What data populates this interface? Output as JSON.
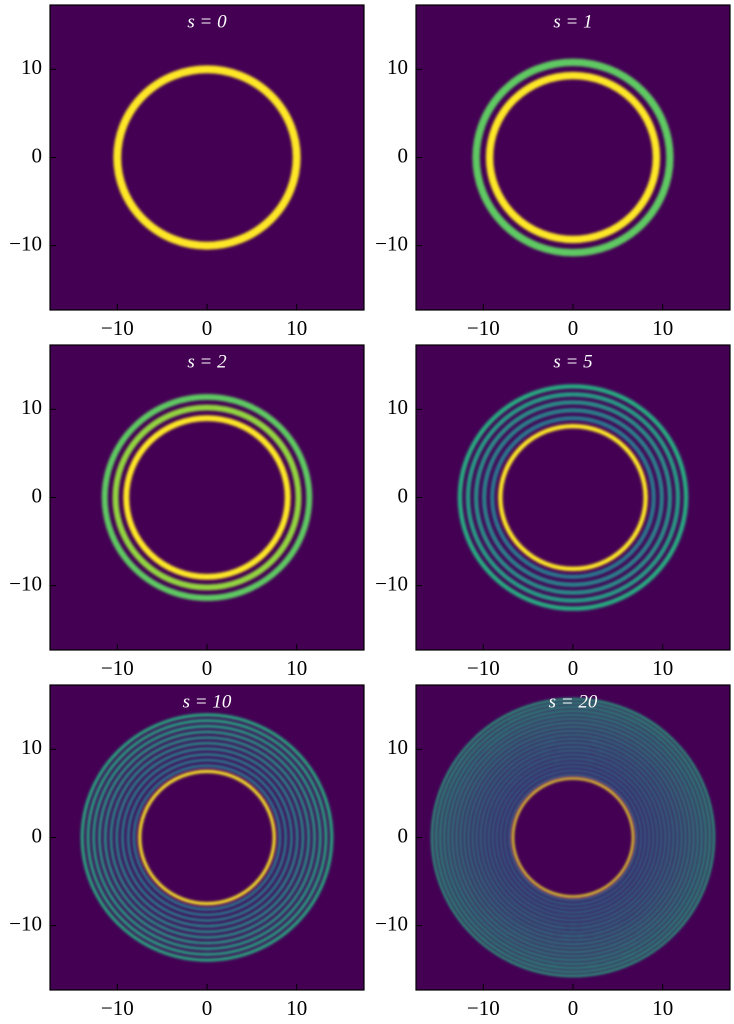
{
  "chart_data": [
    {
      "type": "heatmap",
      "title": "s = 0",
      "background": "#440154",
      "xlim": [
        -17.5,
        17.5
      ],
      "ylim": [
        -17.3,
        17.3
      ],
      "xticks": [
        {
          "value": -10,
          "label": "−10"
        },
        0,
        10
      ],
      "yticks": [
        {
          "value": -10,
          "label": "−10"
        },
        0,
        10
      ],
      "radii": [
        10
      ]
    },
    {
      "type": "heatmap",
      "title": "s = 1",
      "background": "#440154",
      "xlim": [
        -17.5,
        17.5
      ],
      "ylim": [
        -17.3,
        17.3
      ],
      "xticks": [
        {
          "value": -10,
          "label": "−10"
        },
        0,
        10
      ],
      "yticks": [
        {
          "value": -10,
          "label": "−10"
        },
        0,
        10
      ],
      "radii": [
        9.3,
        10.8
      ]
    },
    {
      "type": "heatmap",
      "title": "s = 2",
      "background": "#440154",
      "xlim": [
        -17.5,
        17.5
      ],
      "ylim": [
        -17.3,
        17.3
      ],
      "xticks": [
        {
          "value": -10,
          "label": "−10"
        },
        0,
        10
      ],
      "yticks": [
        {
          "value": -10,
          "label": "−10"
        },
        0,
        10
      ],
      "radii": [
        9.0,
        10.2,
        11.4
      ]
    },
    {
      "type": "heatmap",
      "title": "s = 5",
      "background": "#440154",
      "xlim": [
        -17.5,
        17.5
      ],
      "ylim": [
        -17.3,
        17.3
      ],
      "xticks": [
        {
          "value": -10,
          "label": "−10"
        },
        0,
        10
      ],
      "yticks": [
        {
          "value": -10,
          "label": "−10"
        },
        0,
        10
      ],
      "radii": [
        8.1,
        9.0,
        9.9,
        10.8,
        11.7,
        12.6
      ]
    },
    {
      "type": "heatmap",
      "title": "s = 10",
      "background": "#440154",
      "xlim": [
        -17.5,
        17.5
      ],
      "ylim": [
        -17.3,
        17.3
      ],
      "xticks": [
        {
          "value": -10,
          "label": "−10"
        },
        0,
        10
      ],
      "yticks": [
        {
          "value": -10,
          "label": "−10"
        },
        0,
        10
      ],
      "radii": [
        7.5,
        8.14,
        8.78,
        9.42,
        10.06,
        10.7,
        11.34,
        11.98,
        12.62,
        13.26,
        13.9
      ]
    },
    {
      "type": "heatmap",
      "title": "s = 20",
      "background": "#440154",
      "xlim": [
        -17.5,
        17.5
      ],
      "ylim": [
        -17.3,
        17.3
      ],
      "xticks": [
        {
          "value": -10,
          "label": "−10"
        },
        0,
        10
      ],
      "yticks": [
        {
          "value": -10,
          "label": "−10"
        },
        0,
        10
      ],
      "radii": [
        6.7,
        7.15,
        7.6,
        8.05,
        8.5,
        8.95,
        9.4,
        9.85,
        10.3,
        10.75,
        11.2,
        11.65,
        12.1,
        12.55,
        13.0,
        13.45,
        13.9,
        14.35,
        14.8,
        15.25,
        15.7
      ]
    }
  ]
}
